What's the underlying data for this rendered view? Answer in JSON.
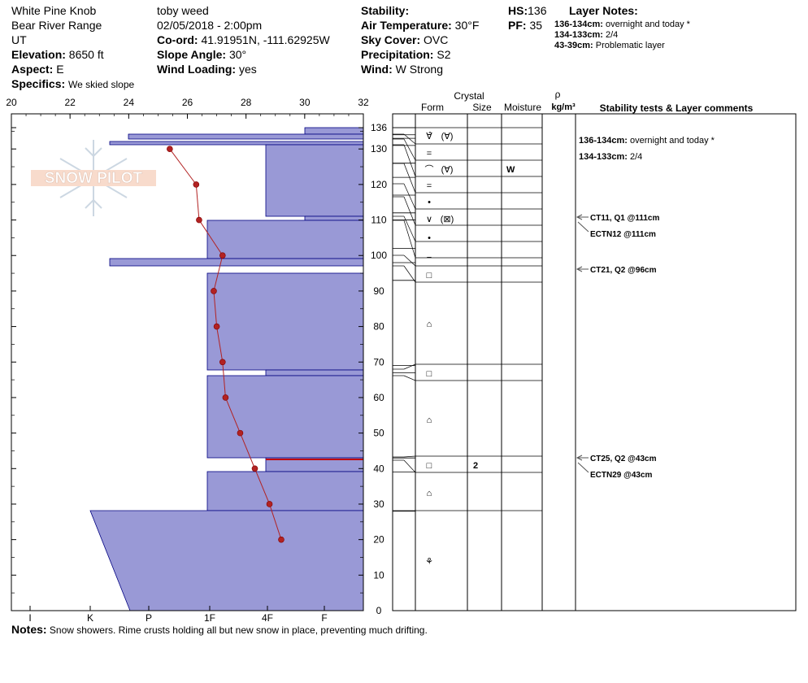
{
  "header": {
    "location": "White Pine Knob",
    "range": "Bear River Range",
    "state": "UT",
    "elevation_label": "Elevation:",
    "elevation_value": "8650 ft",
    "aspect_label": "Aspect:",
    "aspect_value": "E",
    "specifics_label": "Specifics:",
    "specifics_value": "We skied slope",
    "observer": "toby weed",
    "datetime": "02/05/2018 - 2:00pm",
    "coord_label": "Co-ord:",
    "coord_value": "41.91951N, -111.62925W",
    "slope_label": "Slope Angle:",
    "slope_value": "30°",
    "windload_label": "Wind Loading:",
    "windload_value": "yes",
    "stability_label": "Stability:",
    "stability_value": "",
    "airtemp_label": "Air Temperature:",
    "airtemp_value": "30°F",
    "sky_label": "Sky Cover:",
    "sky_value": "OVC",
    "precip_label": "Precipitation:",
    "precip_value": "S2",
    "wind_label": "Wind:",
    "wind_value": "W Strong",
    "hs_label": "HS:",
    "hs_value": "136",
    "pf_label": "PF:",
    "pf_value": "35",
    "layer_notes_label": "Layer Notes:",
    "layer_notes": [
      {
        "range": "136-134cm:",
        "text": "overnight and today *"
      },
      {
        "range": "134-133cm:",
        "text": "2/4"
      },
      {
        "range": "43-39cm:",
        "text": "Problematic layer"
      }
    ]
  },
  "logo_text": "SNOW PILOT",
  "notes_label": "Notes:",
  "notes_text": "Snow showers.  Rime crusts holding all but new snow in place, preventing much drifting.",
  "table": {
    "crystal_label": "Crystal",
    "form_label": "Form",
    "size_label": "Size",
    "moisture_label": "Moisture",
    "rho_label": "ρ",
    "density_unit": "kg/m³",
    "comments_label": "Stability tests & Layer comments"
  },
  "colors": {
    "hardness_fill": "#9999d6",
    "temp_line": "#b22222",
    "highlight": "#c00000"
  },
  "chart_data": {
    "type": "snow_profile",
    "temp_axis": {
      "min": 20,
      "max": 32,
      "ticks": [
        20,
        22,
        24,
        26,
        28,
        30,
        32
      ]
    },
    "height_axis": {
      "min": 0,
      "max": 136,
      "ticks": [
        0,
        10,
        20,
        30,
        40,
        50,
        60,
        70,
        80,
        90,
        100,
        110,
        120,
        130,
        136
      ]
    },
    "hardness_labels": [
      "I",
      "K",
      "P",
      "1F",
      "4F",
      "F"
    ],
    "temperature_profile": [
      {
        "h": 130,
        "t": 25.4
      },
      {
        "h": 120,
        "t": 26.3
      },
      {
        "h": 110,
        "t": 26.4
      },
      {
        "h": 100,
        "t": 27.2
      },
      {
        "h": 90,
        "t": 26.9
      },
      {
        "h": 80,
        "t": 27.0
      },
      {
        "h": 70,
        "t": 27.2
      },
      {
        "h": 60,
        "t": 27.3
      },
      {
        "h": 50,
        "t": 27.8
      },
      {
        "h": 40,
        "t": 28.3
      },
      {
        "h": 30,
        "t": 28.8
      },
      {
        "h": 20,
        "t": 29.2
      }
    ],
    "layers": [
      {
        "top": 136,
        "bottom": 134,
        "form": "∀̂",
        "form2": "(∀)",
        "size": "",
        "moisture": ""
      },
      {
        "top": 134,
        "bottom": 133,
        "form": "",
        "form2": "",
        "size": "",
        "moisture": ""
      },
      {
        "top": 133,
        "bottom": 131,
        "form": "",
        "form2": "",
        "size": "",
        "moisture": ""
      },
      {
        "top": 131,
        "bottom": 126,
        "form": "=",
        "form2": "",
        "size": "",
        "moisture": ""
      },
      {
        "top": 126,
        "bottom": 122,
        "form": "⌒",
        "form2": "(∀)",
        "size": "",
        "moisture": "W"
      },
      {
        "top": 122,
        "bottom": 117,
        "form": "=",
        "form2": "",
        "size": "",
        "moisture": ""
      },
      {
        "top": 117,
        "bottom": 112,
        "form": "•",
        "form2": "",
        "size": "",
        "moisture": ""
      },
      {
        "top": 112,
        "bottom": 110,
        "form": "∨",
        "form2": "(⊠)",
        "size": "",
        "moisture": ""
      },
      {
        "top": 110,
        "bottom": 102,
        "form": "•",
        "form2": "",
        "size": "",
        "moisture": ""
      },
      {
        "top": 102,
        "bottom": 98,
        "form": "−",
        "form2": "",
        "size": "",
        "moisture": ""
      },
      {
        "top": 98,
        "bottom": 93,
        "form": "□",
        "form2": "",
        "size": "",
        "moisture": ""
      },
      {
        "top": 93,
        "bottom": 69,
        "form": "⌂",
        "form2": "",
        "size": "",
        "moisture": ""
      },
      {
        "top": 69,
        "bottom": 67,
        "form": "□",
        "form2": "",
        "size": "",
        "moisture": ""
      },
      {
        "top": 67,
        "bottom": 43,
        "form": "⌂",
        "form2": "",
        "size": "",
        "moisture": ""
      },
      {
        "top": 43,
        "bottom": 39,
        "form": "□",
        "form2": "",
        "size": "2",
        "moisture": ""
      },
      {
        "top": 39,
        "bottom": 28,
        "form": "⌂",
        "form2": "",
        "size": "",
        "moisture": ""
      },
      {
        "top": 28,
        "bottom": 0,
        "form": "⚘",
        "form2": "",
        "size": "",
        "moisture": ""
      }
    ],
    "test_results": [
      {
        "h": 111,
        "text": "CT11, Q1 @111cm"
      },
      {
        "h": 111,
        "text": "ECTN12 @111cm"
      },
      {
        "h": 96,
        "text": "CT21, Q2 @96cm"
      },
      {
        "h": 43,
        "text": "CT25, Q2 @43cm"
      },
      {
        "h": 43,
        "text": "ECTN29 @43cm"
      }
    ]
  }
}
